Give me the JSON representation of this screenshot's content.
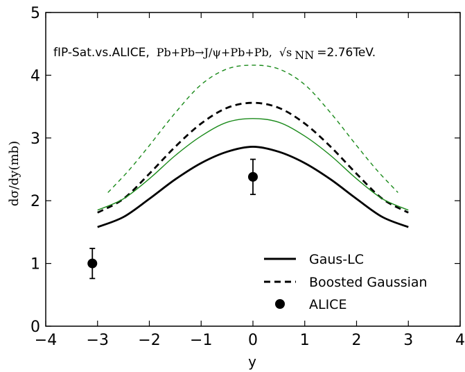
{
  "chart_data": {
    "type": "line",
    "title_prefix": "fIP-Sat.vs.ALICE,",
    "title_process": "Pb+Pb→J/ψ+Pb+Pb,",
    "title_sqrt": "√s",
    "title_sub": "NN",
    "title_energy": "=2.76TeV.",
    "xlabel": "y",
    "ylabel": "dσ/dy(mb)",
    "xlim": [
      -4,
      4
    ],
    "ylim": [
      0,
      5
    ],
    "xticks": [
      "−4",
      "−3",
      "−2",
      "−1",
      "0",
      "1",
      "2",
      "3",
      "4"
    ],
    "yticks": [
      "0",
      "1",
      "2",
      "3",
      "4",
      "5"
    ],
    "grid": false,
    "legend_position": "bottom-right",
    "series": [
      {
        "name": "Gaus-LC",
        "style": "solid",
        "color": "#000000",
        "x": [
          -3.0,
          -2.5,
          -2.0,
          -1.5,
          -1.0,
          -0.5,
          0.0,
          0.5,
          1.0,
          1.5,
          2.0,
          2.5,
          3.0
        ],
        "y": [
          1.58,
          1.74,
          2.03,
          2.34,
          2.6,
          2.78,
          2.86,
          2.78,
          2.6,
          2.34,
          2.03,
          1.74,
          1.58
        ]
      },
      {
        "name": "Boosted Gaussian",
        "style": "dashed",
        "color": "#000000",
        "x": [
          -3.0,
          -2.5,
          -2.0,
          -1.5,
          -1.0,
          -0.5,
          0.0,
          0.5,
          1.0,
          1.5,
          2.0,
          2.5,
          3.0
        ],
        "y": [
          1.81,
          2.03,
          2.43,
          2.86,
          3.23,
          3.48,
          3.56,
          3.48,
          3.23,
          2.86,
          2.43,
          2.03,
          1.81
        ]
      },
      {
        "style": "solid",
        "color": "#1a8a1a",
        "x": [
          -3.0,
          -2.5,
          -2.0,
          -1.5,
          -1.0,
          -0.5,
          0.0,
          0.5,
          1.0,
          1.5,
          2.0,
          2.5,
          3.0
        ],
        "y": [
          1.85,
          2.03,
          2.35,
          2.72,
          3.03,
          3.25,
          3.31,
          3.25,
          3.03,
          2.72,
          2.35,
          2.03,
          1.85
        ]
      },
      {
        "style": "dashed",
        "color": "#1a8a1a",
        "x": [
          -2.8,
          -2.4,
          -2.0,
          -1.5,
          -1.0,
          -0.5,
          0.0,
          0.5,
          1.0,
          1.5,
          2.0,
          2.4,
          2.8
        ],
        "y": [
          2.13,
          2.48,
          2.88,
          3.4,
          3.85,
          4.1,
          4.16,
          4.1,
          3.85,
          3.4,
          2.88,
          2.48,
          2.13
        ]
      }
    ],
    "points": {
      "name": "ALICE",
      "color": "#000000",
      "data": [
        {
          "x": -3.1,
          "y": 1.0,
          "err_low": 0.24,
          "err_high": 0.24
        },
        {
          "x": 0.0,
          "y": 2.38,
          "err_low": 0.28,
          "err_high": 0.28
        }
      ]
    }
  }
}
